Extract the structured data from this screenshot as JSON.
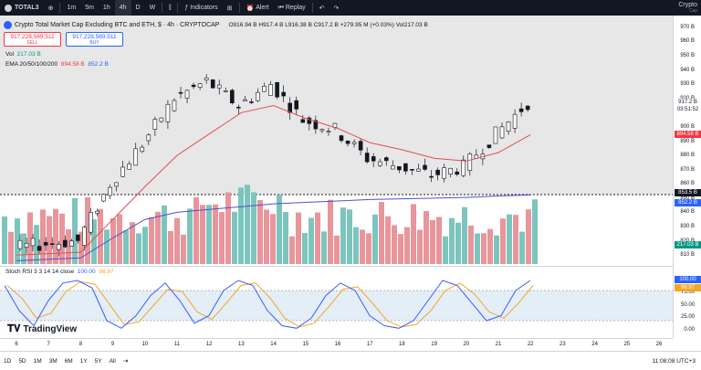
{
  "toolbar": {
    "symbol": "TOTAL3",
    "intervals": [
      "1m",
      "5m",
      "1h",
      "4h",
      "D",
      "W"
    ],
    "active_interval": "4h",
    "indicators": "Indicators",
    "alert": "Alert",
    "replay": "Replay",
    "brand_top": "Crypto",
    "brand_bottom": "Cap"
  },
  "legend": {
    "title": "Crypto Total Market Cap Excluding BTC and ETH, $ · 4h · CRYPTOCAP",
    "ohlc": "O916.94 B  H917.4 B  L916.38 B  C917.2 B  +279.95 M (+0.03%)  Vol217.03 B",
    "sell_value": "917,228,569,511",
    "sell_label": "SELL",
    "buy_value": "917,228,569,511",
    "buy_label": "BUY",
    "vol_label": "Vol",
    "vol_value": "217.03 B",
    "ema_label": "EMA 20/50/100/200",
    "ema_a": "894.58 B",
    "ema_b": "852.2 B",
    "rsi_label": "Stoch RSI 3 3 14 14 close",
    "rsi_k": "100.00",
    "rsi_d": "98.97"
  },
  "price_axis": {
    "ticks": [
      "970 B",
      "960 B",
      "950 B",
      "940 B",
      "930 B",
      "920 B",
      "910 B",
      "900 B",
      "890 B",
      "880 B",
      "870 B",
      "860 B",
      "850 B",
      "840 B",
      "830 B",
      "820 B",
      "810 B"
    ],
    "current": "917.2 B",
    "countdown": "03:51:52",
    "ema_fast_tag": "894.58 B",
    "line_tag": "853.5 B",
    "ema_slow_tag": "852.2 B",
    "vol_tag": "217.03 B"
  },
  "rsi_axis": {
    "ticks": [
      "75.00",
      "50.00",
      "25.00",
      "0.00"
    ],
    "k_tag": "100.00",
    "d_tag": "98.97"
  },
  "time_axis": {
    "ticks": [
      "6",
      "7",
      "8",
      "9",
      "10",
      "11",
      "12",
      "13",
      "14",
      "15",
      "16",
      "17",
      "18",
      "19",
      "20",
      "21",
      "22",
      "23",
      "24",
      "25",
      "26"
    ]
  },
  "bottom": {
    "ranges": [
      "1D",
      "5D",
      "1M",
      "3M",
      "6M",
      "1Y",
      "5Y",
      "All"
    ],
    "time": "11:08:08 UTC+3"
  },
  "logo_text": "TradingView",
  "colors": {
    "up": "#089981",
    "down": "#f23645",
    "ema_fast": "#e05050",
    "ema_slow": "#5050d0",
    "rsi_k": "#3d5afe",
    "rsi_d": "#f5a623"
  },
  "chart_data": {
    "type": "candlestick",
    "title": "Crypto Total Market Cap Excluding BTC and ETH, $ · 4h · CRYPTOCAP",
    "ylim": [
      805,
      975
    ],
    "x": [
      "6",
      "7",
      "8",
      "9",
      "10",
      "11",
      "12",
      "13",
      "14",
      "15",
      "16",
      "17",
      "18",
      "19",
      "20",
      "21",
      "22"
    ],
    "series": [
      {
        "name": "price",
        "values": [
          815,
          818,
          820,
          860,
          888,
          920,
          932,
          915,
          930,
          905,
          898,
          878,
          872,
          866,
          872,
          895,
          917
        ]
      },
      {
        "name": "EMA 20/50/100/200",
        "values": [
          810,
          811,
          812,
          835,
          858,
          880,
          895,
          910,
          915,
          906,
          899,
          889,
          884,
          878,
          876,
          882,
          894.58
        ]
      },
      {
        "name": "EMA 20/50/100/200",
        "values": [
          806,
          807,
          808,
          822,
          835,
          840,
          842,
          844,
          846,
          847,
          848,
          849,
          849.5,
          850,
          850.5,
          851.5,
          852.2
        ]
      }
    ]
  }
}
